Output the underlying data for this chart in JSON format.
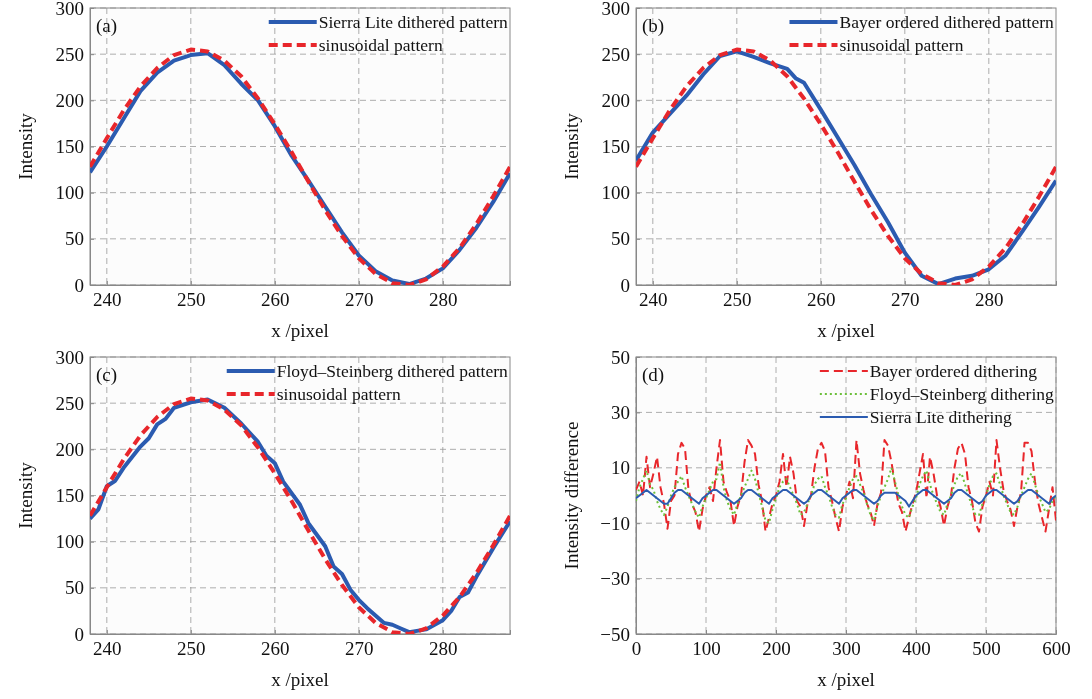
{
  "chart_data": [
    {
      "type": "line",
      "annotations": [
        "(a)"
      ],
      "xlabel": "x /pixel",
      "ylabel": "Intensity",
      "xlim": [
        238,
        288
      ],
      "xticks": [
        240,
        250,
        260,
        270,
        280
      ],
      "ylim": [
        0,
        300
      ],
      "yticks": [
        0,
        50,
        100,
        150,
        200,
        250,
        300
      ],
      "grid": true,
      "legend": "top right",
      "series": [
        {
          "name": "Sierra Lite dithered pattern",
          "color": "#2b5bb0",
          "line_style": "solid",
          "x": [
            238,
            240,
            242,
            244,
            246,
            248,
            250,
            252,
            254,
            256,
            258,
            260,
            262,
            264,
            266,
            268,
            270,
            272,
            274,
            276,
            278,
            280,
            282,
            284,
            286,
            288
          ],
          "values": [
            122,
            150,
            180,
            210,
            230,
            243,
            249,
            251,
            238,
            218,
            200,
            172,
            140,
            113,
            85,
            57,
            32,
            15,
            5,
            1,
            7,
            18,
            38,
            62,
            90,
            121
          ]
        },
        {
          "name": "sinusoidal pattern",
          "color": "#e8262b",
          "line_style": "dashed",
          "x": [
            238,
            240,
            242,
            244,
            246,
            248,
            250,
            252,
            254,
            256,
            258,
            260,
            262,
            264,
            266,
            268,
            270,
            272,
            274,
            276,
            278,
            280,
            282,
            284,
            286,
            288
          ],
          "values": [
            128,
            159,
            189,
            215,
            235,
            249,
            255,
            253,
            243,
            226,
            202,
            174,
            144,
            112,
            81,
            53,
            29,
            12,
            2,
            0,
            6,
            20,
            40,
            66,
            96,
            128
          ]
        }
      ]
    },
    {
      "type": "line",
      "annotations": [
        "(b)"
      ],
      "xlabel": "x /pixel",
      "ylabel": "Intensity",
      "xlim": [
        238,
        288
      ],
      "xticks": [
        240,
        250,
        260,
        270,
        280
      ],
      "ylim": [
        0,
        300
      ],
      "yticks": [
        0,
        50,
        100,
        150,
        200,
        250,
        300
      ],
      "grid": true,
      "legend": "top right",
      "series": [
        {
          "name": "Bayer ordered dithered pattern",
          "color": "#2b5bb0",
          "line_style": "solid",
          "x": [
            238,
            240,
            242,
            244,
            246,
            248,
            250,
            252,
            254,
            256,
            257,
            258,
            260,
            262,
            264,
            266,
            268,
            270,
            272,
            274,
            276,
            278,
            280,
            282,
            284,
            286,
            288
          ],
          "values": [
            135,
            165,
            185,
            205,
            228,
            248,
            253,
            247,
            240,
            234,
            224,
            219,
            190,
            160,
            130,
            98,
            68,
            35,
            10,
            1,
            7,
            10,
            17,
            32,
            58,
            85,
            113
          ]
        },
        {
          "name": "sinusoidal pattern",
          "color": "#e8262b",
          "line_style": "dashed",
          "x": [
            238,
            240,
            242,
            244,
            246,
            248,
            250,
            252,
            254,
            256,
            258,
            260,
            262,
            264,
            266,
            268,
            270,
            272,
            274,
            276,
            278,
            280,
            282,
            284,
            286,
            288
          ],
          "values": [
            128,
            159,
            189,
            215,
            235,
            249,
            255,
            253,
            243,
            226,
            202,
            174,
            144,
            112,
            81,
            53,
            29,
            12,
            2,
            0,
            6,
            20,
            40,
            66,
            96,
            128
          ]
        }
      ]
    },
    {
      "type": "line",
      "annotations": [
        "(c)"
      ],
      "xlabel": "x /pixel",
      "ylabel": "Intensity",
      "xlim": [
        238,
        288
      ],
      "xticks": [
        240,
        250,
        260,
        270,
        280
      ],
      "ylim": [
        0,
        300
      ],
      "yticks": [
        0,
        50,
        100,
        150,
        200,
        250,
        300
      ],
      "grid": true,
      "legend": "top right",
      "series": [
        {
          "name": "Floyd–Steinberg dithered pattern",
          "color": "#2b5bb0",
          "line_style": "solid",
          "x": [
            238,
            239,
            240,
            241,
            242,
            244,
            245,
            246,
            247,
            248,
            250,
            252,
            254,
            256,
            258,
            259,
            260,
            261,
            263,
            264,
            266,
            267,
            268,
            269,
            270,
            271,
            273,
            274,
            275,
            276,
            278,
            280,
            281,
            282,
            283,
            284,
            286,
            288
          ],
          "values": [
            125,
            135,
            160,
            166,
            180,
            203,
            212,
            227,
            233,
            245,
            251,
            254,
            245,
            228,
            208,
            193,
            185,
            165,
            140,
            120,
            95,
            73,
            65,
            48,
            37,
            28,
            12,
            10,
            6,
            2,
            5,
            15,
            25,
            40,
            45,
            62,
            93,
            122
          ]
        },
        {
          "name": "sinusoidal pattern",
          "color": "#e8262b",
          "line_style": "dashed",
          "x": [
            238,
            240,
            242,
            244,
            246,
            248,
            250,
            252,
            254,
            256,
            258,
            260,
            262,
            264,
            266,
            268,
            270,
            272,
            274,
            276,
            278,
            280,
            282,
            284,
            286,
            288
          ],
          "values": [
            128,
            159,
            189,
            215,
            235,
            249,
            255,
            253,
            243,
            226,
            202,
            174,
            144,
            112,
            81,
            53,
            29,
            12,
            2,
            0,
            6,
            20,
            40,
            66,
            96,
            128
          ]
        }
      ]
    },
    {
      "type": "line",
      "annotations": [
        "(d)"
      ],
      "xlabel": "x /pixel",
      "ylabel": "Intensity difference",
      "xlim": [
        0,
        600
      ],
      "xticks": [
        0,
        100,
        200,
        300,
        400,
        500,
        600
      ],
      "ylim": [
        -50,
        50
      ],
      "yticks": [
        {
          "value": -50,
          "label": "−50"
        },
        {
          "value": -30,
          "label": "−30"
        },
        {
          "value": -10,
          "label": "−10"
        },
        10,
        30,
        50
      ],
      "grid": true,
      "legend": "top right",
      "x": [
        0,
        5,
        10,
        15,
        20,
        25,
        30,
        35,
        40,
        45,
        50,
        55,
        60,
        65,
        70,
        75,
        80,
        85,
        90,
        95,
        100,
        105,
        110,
        115,
        120,
        125,
        130,
        135,
        140,
        145,
        150,
        155,
        160,
        165,
        170,
        175,
        180,
        185,
        190,
        195,
        200,
        205,
        210,
        215,
        220,
        225,
        230,
        235,
        240,
        245,
        250,
        255,
        260,
        265,
        270,
        275,
        280,
        285,
        290,
        295,
        300,
        305,
        310,
        315,
        320,
        325,
        330,
        335,
        340,
        345,
        350,
        355,
        360,
        365,
        370,
        375,
        380,
        385,
        390,
        395,
        400,
        405,
        410,
        415,
        420,
        425,
        430,
        435,
        440,
        445,
        450,
        455,
        460,
        465,
        470,
        475,
        480,
        485,
        490,
        495,
        500,
        505,
        510,
        515,
        520,
        525,
        530,
        535,
        540,
        545,
        550,
        555,
        560,
        565,
        570,
        575,
        580,
        585,
        590,
        595,
        600
      ],
      "series": [
        {
          "name": "Bayer ordered dithering",
          "color": "#e8262b",
          "line_style": "dashed",
          "values": [
            2,
            5,
            0,
            14,
            3,
            8,
            14,
            3,
            -3,
            -12,
            -2,
            0,
            15,
            19,
            17,
            2,
            -3,
            -6,
            -13,
            -5,
            0,
            3,
            -2,
            10,
            20,
            5,
            1,
            -2,
            -11,
            -4,
            0,
            12,
            20,
            18,
            15,
            4,
            -2,
            -13,
            -8,
            -3,
            0,
            5,
            15,
            3,
            14,
            8,
            -2,
            -4,
            -11,
            -3,
            0,
            10,
            17,
            19,
            16,
            3,
            -2,
            -8,
            -13,
            -4,
            0,
            5,
            -1,
            20,
            8,
            2,
            -3,
            -6,
            -11,
            -3,
            1,
            20,
            18,
            12,
            4,
            -3,
            -6,
            -13,
            -8,
            -3,
            1,
            8,
            15,
            -1,
            14,
            8,
            0,
            -4,
            -11,
            -4,
            0,
            10,
            17,
            19,
            15,
            3,
            -2,
            -10,
            -13,
            -4,
            0,
            5,
            0,
            20,
            10,
            2,
            -2,
            -5,
            -11,
            -4,
            1,
            19,
            19,
            16,
            5,
            -3,
            -8,
            -13,
            -5,
            3,
            -9
          ]
        },
        {
          "name": "Floyd–Steinberg dithering",
          "color": "#6cbf3a",
          "line_style": "dotted",
          "values": [
            -2,
            3,
            6,
            9,
            4,
            2,
            -2,
            -5,
            -7,
            -4,
            0,
            3,
            5,
            7,
            3,
            0,
            -3,
            -6,
            -8,
            -4,
            -1,
            2,
            5,
            6,
            12,
            3,
            -2,
            -5,
            -7,
            -3,
            0,
            3,
            6,
            9,
            6,
            1,
            -4,
            -9,
            -10,
            -5,
            -1,
            3,
            5,
            6,
            3,
            0,
            -3,
            -7,
            -6,
            -3,
            0,
            4,
            6,
            7,
            3,
            0,
            -4,
            -7,
            -8,
            -3,
            -1,
            3,
            6,
            7,
            4,
            1,
            -3,
            -7,
            -9,
            -4,
            0,
            3,
            6,
            10,
            5,
            0,
            -4,
            -7,
            -8,
            -4,
            -1,
            4,
            7,
            9,
            4,
            0,
            -3,
            -6,
            -7,
            -3,
            0,
            4,
            7,
            8,
            4,
            0,
            -4,
            -7,
            -7,
            -3,
            0,
            4,
            7,
            8,
            4,
            0,
            -3,
            -6,
            -7,
            -4,
            0,
            3,
            6,
            8,
            4,
            0,
            -3,
            -6,
            -5,
            -2,
            0
          ]
        },
        {
          "name": "Sierra Lite dithering",
          "color": "#2b5bb0",
          "line_style": "solid",
          "values": [
            -1,
            0,
            1,
            2,
            1,
            0,
            -1,
            -2,
            -3,
            -3,
            -1,
            1,
            2,
            2,
            1,
            0,
            -1,
            -2,
            -3,
            -1,
            0,
            1,
            2,
            2,
            1,
            0,
            -1,
            -2,
            -3,
            -2,
            -1,
            1,
            2,
            2,
            1,
            0,
            -1,
            -2,
            -3,
            -1,
            0,
            1,
            2,
            2,
            1,
            0,
            -1,
            -2,
            -3,
            -2,
            0,
            1,
            2,
            2,
            1,
            0,
            -1,
            -2,
            -3,
            -1,
            0,
            1,
            2,
            2,
            1,
            0,
            -1,
            -2,
            -3,
            -2,
            0,
            1,
            1,
            1,
            1,
            0,
            -1,
            -2,
            -4,
            -2,
            0,
            1,
            2,
            2,
            1,
            0,
            -1,
            -2,
            -3,
            -2,
            -1,
            1,
            2,
            2,
            1,
            0,
            -1,
            -2,
            -3,
            -2,
            0,
            1,
            2,
            2,
            1,
            0,
            -1,
            -2,
            -3,
            -2,
            0,
            1,
            2,
            2,
            1,
            0,
            -1,
            -2,
            -3,
            -1,
            0
          ]
        }
      ]
    }
  ]
}
